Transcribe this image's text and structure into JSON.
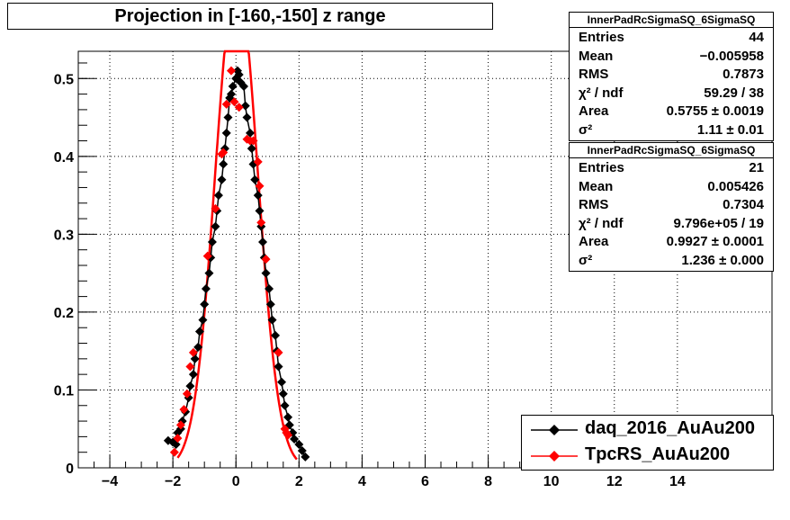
{
  "title": "Projection in [-160,-150] z range",
  "stats_boxes": [
    {
      "name": "InnerPadRcSigmaSQ_6SigmaSQ",
      "rows": [
        {
          "key": "Entries",
          "value": "44"
        },
        {
          "key": "Mean",
          "value": "−0.005958"
        },
        {
          "key": "RMS",
          "value": "0.7873"
        },
        {
          "key": "χ² / ndf",
          "value": "59.29 / 38"
        },
        {
          "key": "Area",
          "value": "0.5755 ± 0.0019"
        },
        {
          "key": "σ²",
          "value": "1.11 ± 0.01"
        }
      ]
    },
    {
      "name": "InnerPadRcSigmaSQ_6SigmaSQ",
      "rows": [
        {
          "key": "Entries",
          "value": "21"
        },
        {
          "key": "Mean",
          "value": "0.005426"
        },
        {
          "key": "RMS",
          "value": "0.7304"
        },
        {
          "key": "χ² / ndf",
          "value": "9.796e+05 / 19"
        },
        {
          "key": "Area",
          "value": "0.9927 ± 0.0001"
        },
        {
          "key": "σ²",
          "value": "1.236 ± 0.000"
        }
      ]
    }
  ],
  "legend": [
    {
      "label": "daq_2016_AuAu200",
      "color": "#000000"
    },
    {
      "label": "TpcRS_AuAu200",
      "color": "#ff0000"
    }
  ],
  "colors": {
    "daq": "#000000",
    "tpcrs": "#ff0000",
    "grid": "#000000"
  },
  "chart_data": {
    "type": "scatter",
    "title": "Projection in [-160,-150] z range",
    "xlabel": "",
    "ylabel": "",
    "xlim": [
      -5,
      17
    ],
    "ylim": [
      0,
      0.535
    ],
    "x_ticks": [
      -4,
      -2,
      0,
      2,
      4,
      6,
      8,
      10,
      12,
      14
    ],
    "x_tick_labels": [
      "−4",
      "−2",
      "0",
      "2",
      "4",
      "6",
      "8",
      "10",
      "12",
      "14"
    ],
    "y_ticks": [
      0,
      0.1,
      0.2,
      0.3,
      0.4,
      0.5
    ],
    "y_tick_labels": [
      "0",
      "0.1",
      "0.2",
      "0.3",
      "0.4",
      "0.5"
    ],
    "grid": true,
    "legend_position": "bottom-right",
    "series": [
      {
        "name": "daq_2016_AuAu200",
        "color": "#000000",
        "points": [
          [
            -2.15,
            0.035
          ],
          [
            -2.0,
            0.033
          ],
          [
            -1.9,
            0.03
          ],
          [
            -1.85,
            0.045
          ],
          [
            -1.75,
            0.05
          ],
          [
            -1.7,
            0.06
          ],
          [
            -1.6,
            0.072
          ],
          [
            -1.5,
            0.09
          ],
          [
            -1.45,
            0.105
          ],
          [
            -1.35,
            0.12
          ],
          [
            -1.3,
            0.14
          ],
          [
            -1.2,
            0.155
          ],
          [
            -1.15,
            0.175
          ],
          [
            -1.05,
            0.19
          ],
          [
            -1.0,
            0.21
          ],
          [
            -0.95,
            0.23
          ],
          [
            -0.85,
            0.25
          ],
          [
            -0.8,
            0.27
          ],
          [
            -0.75,
            0.29
          ],
          [
            -0.65,
            0.31
          ],
          [
            -0.6,
            0.33
          ],
          [
            -0.55,
            0.35
          ],
          [
            -0.45,
            0.37
          ],
          [
            -0.4,
            0.39
          ],
          [
            -0.35,
            0.41
          ],
          [
            -0.3,
            0.43
          ],
          [
            -0.25,
            0.45
          ],
          [
            -0.2,
            0.475
          ],
          [
            -0.15,
            0.48
          ],
          [
            -0.1,
            0.49
          ],
          [
            0.0,
            0.5
          ],
          [
            0.05,
            0.51
          ],
          [
            0.1,
            0.505
          ],
          [
            0.15,
            0.495
          ],
          [
            0.25,
            0.49
          ],
          [
            0.3,
            0.465
          ],
          [
            0.35,
            0.45
          ],
          [
            0.45,
            0.43
          ],
          [
            0.5,
            0.41
          ],
          [
            0.55,
            0.39
          ],
          [
            0.6,
            0.37
          ],
          [
            0.7,
            0.35
          ],
          [
            0.75,
            0.33
          ],
          [
            0.8,
            0.31
          ],
          [
            0.85,
            0.29
          ],
          [
            0.9,
            0.27
          ],
          [
            0.95,
            0.25
          ],
          [
            1.05,
            0.23
          ],
          [
            1.1,
            0.21
          ],
          [
            1.15,
            0.19
          ],
          [
            1.25,
            0.17
          ],
          [
            1.3,
            0.15
          ],
          [
            1.35,
            0.13
          ],
          [
            1.45,
            0.11
          ],
          [
            1.5,
            0.095
          ],
          [
            1.55,
            0.08
          ],
          [
            1.65,
            0.065
          ],
          [
            1.7,
            0.055
          ],
          [
            1.8,
            0.045
          ],
          [
            1.85,
            0.037
          ],
          [
            2.0,
            0.03
          ],
          [
            2.1,
            0.022
          ],
          [
            2.2,
            0.014
          ]
        ]
      },
      {
        "name": "TpcRS_AuAu200",
        "color": "#ff0000",
        "points": [
          [
            -1.95,
            0.02
          ],
          [
            -1.85,
            0.038
          ],
          [
            -1.75,
            0.055
          ],
          [
            -1.65,
            0.075
          ],
          [
            -1.55,
            0.095
          ],
          [
            -1.45,
            0.13
          ],
          [
            -1.35,
            0.148
          ],
          [
            -0.9,
            0.272
          ],
          [
            -0.65,
            0.333
          ],
          [
            -0.45,
            0.403
          ],
          [
            -0.4,
            0.405
          ],
          [
            -0.3,
            0.467
          ],
          [
            -0.15,
            0.51
          ],
          [
            -0.05,
            0.47
          ],
          [
            0.1,
            0.463
          ],
          [
            0.35,
            0.422
          ],
          [
            0.45,
            0.42
          ],
          [
            0.55,
            0.42
          ],
          [
            0.7,
            0.393
          ],
          [
            0.75,
            0.362
          ],
          [
            0.8,
            0.315
          ],
          [
            0.95,
            0.268
          ],
          [
            1.35,
            0.148
          ],
          [
            1.55,
            0.05
          ],
          [
            1.6,
            0.045
          ],
          [
            1.65,
            0.042
          ]
        ]
      }
    ],
    "fit": {
      "name": "TpcRS_AuAu200 fit",
      "color": "#ff0000",
      "amplitude": 0.63,
      "sigma": 0.67,
      "mean": 0.02
    }
  }
}
